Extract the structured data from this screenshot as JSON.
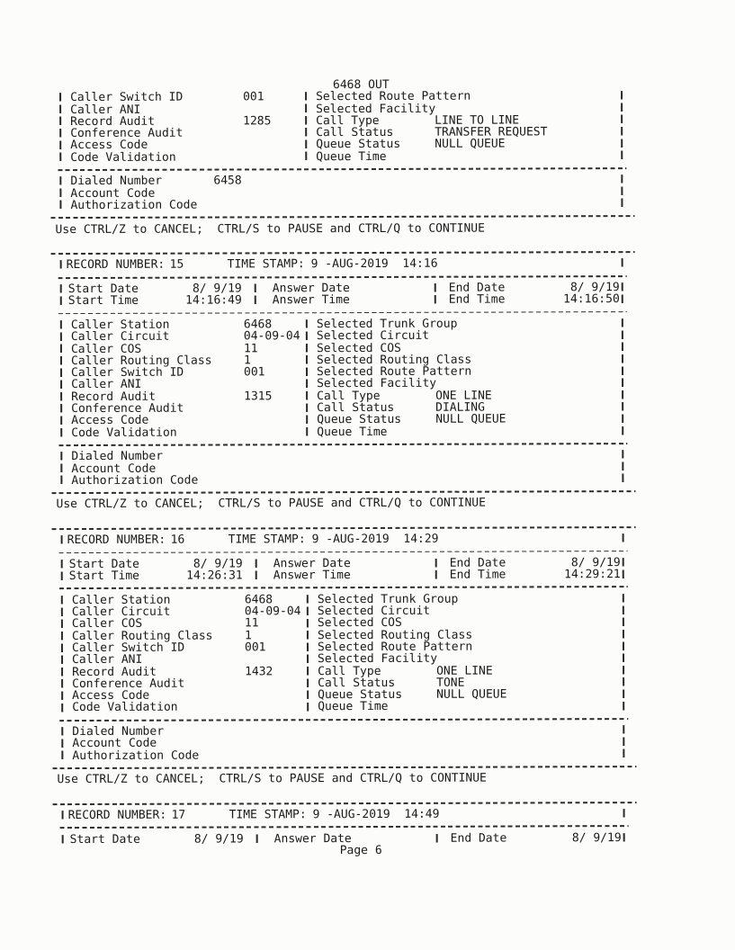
{
  "prompt_line": "Use CTRL/Z to CANCEL;  CTRL/S to PAUSE and CTRL/Q to CONTINUE",
  "footer": {
    "page_label": "Page 6"
  },
  "top_partial_record": {
    "carryover_value": "6468 OUT",
    "detail_rows": [
      {
        "l": "Caller Switch ID",
        "lv": "001",
        "r": "Selected Route Pattern",
        "rv": ""
      },
      {
        "l": "Caller ANI",
        "lv": "",
        "r": "Selected Facility",
        "rv": ""
      },
      {
        "l": "Record Audit",
        "lv": "1285",
        "r": "Call Type",
        "rv": "LINE TO LINE"
      },
      {
        "l": "Conference Audit",
        "lv": "",
        "r": "Call Status",
        "rv": "TRANSFER REQUEST"
      },
      {
        "l": "Access Code",
        "lv": "",
        "r": "Queue Status",
        "rv": "NULL QUEUE"
      },
      {
        "l": "Code Validation",
        "lv": "",
        "r": "Queue Time",
        "rv": ""
      }
    ],
    "dialed_rows": [
      {
        "l": "Dialed Number",
        "lv": "6458"
      },
      {
        "l": "Account Code",
        "lv": ""
      },
      {
        "l": "Authorization Code",
        "lv": ""
      }
    ]
  },
  "records": [
    {
      "header": {
        "label": "RECORD NUMBER:",
        "number": "15",
        "ts_label": "TIME STAMP:",
        "ts_value": "9 -AUG-2019  14:16"
      },
      "start_rows": [
        {
          "sl": "Start Date",
          "sv": "8/ 9/19",
          "al": "Answer Date",
          "av": "",
          "el": "End Date",
          "ev": "8/ 9/19"
        },
        {
          "sl": "Start Time",
          "sv": "14:16:49",
          "al": "Answer Time",
          "av": "",
          "el": "End Time",
          "ev": "14:16:50"
        }
      ],
      "detail_rows": [
        {
          "l": "Caller Station",
          "lv": "6468",
          "r": "Selected Trunk Group",
          "rv": ""
        },
        {
          "l": "Caller Circuit",
          "lv": "04-09-04",
          "r": "Selected Circuit",
          "rv": ""
        },
        {
          "l": "Caller COS",
          "lv": "11",
          "r": "Selected COS",
          "rv": ""
        },
        {
          "l": "Caller Routing Class",
          "lv": "1",
          "r": "Selected Routing Class",
          "rv": ""
        },
        {
          "l": "Caller Switch ID",
          "lv": "001",
          "r": "Selected Route Pattern",
          "rv": ""
        },
        {
          "l": "Caller ANI",
          "lv": "",
          "r": "Selected Facility",
          "rv": ""
        },
        {
          "l": "Record Audit",
          "lv": "1315",
          "r": "Call Type",
          "rv": "ONE LINE"
        },
        {
          "l": "Conference Audit",
          "lv": "",
          "r": "Call Status",
          "rv": "DIALING"
        },
        {
          "l": "Access Code",
          "lv": "",
          "r": "Queue Status",
          "rv": "NULL QUEUE"
        },
        {
          "l": "Code Validation",
          "lv": "",
          "r": "Queue Time",
          "rv": ""
        }
      ],
      "dialed_rows": [
        {
          "l": "Dialed Number",
          "lv": ""
        },
        {
          "l": "Account Code",
          "lv": ""
        },
        {
          "l": "Authorization Code",
          "lv": ""
        }
      ]
    },
    {
      "header": {
        "label": "RECORD NUMBER:",
        "number": "16",
        "ts_label": "TIME STAMP:",
        "ts_value": "9 -AUG-2019  14:29"
      },
      "start_rows": [
        {
          "sl": "Start Date",
          "sv": "8/ 9/19",
          "al": "Answer Date",
          "av": "",
          "el": "End Date",
          "ev": "8/ 9/19"
        },
        {
          "sl": "Start Time",
          "sv": "14:26:31",
          "al": "Answer Time",
          "av": "",
          "el": "End Time",
          "ev": "14:29:21"
        }
      ],
      "detail_rows": [
        {
          "l": "Caller Station",
          "lv": "6468",
          "r": "Selected Trunk Group",
          "rv": ""
        },
        {
          "l": "Caller Circuit",
          "lv": "04-09-04",
          "r": "Selected Circuit",
          "rv": ""
        },
        {
          "l": "Caller COS",
          "lv": "11",
          "r": "Selected COS",
          "rv": ""
        },
        {
          "l": "Caller Routing Class",
          "lv": "1",
          "r": "Selected Routing Class",
          "rv": ""
        },
        {
          "l": "Caller Switch ID",
          "lv": "001",
          "r": "Selected Route Pattern",
          "rv": ""
        },
        {
          "l": "Caller ANI",
          "lv": "",
          "r": "Selected Facility",
          "rv": ""
        },
        {
          "l": "Record Audit",
          "lv": "1432",
          "r": "Call Type",
          "rv": "ONE LINE"
        },
        {
          "l": "Conference Audit",
          "lv": "",
          "r": "Call Status",
          "rv": "TONE"
        },
        {
          "l": "Access Code",
          "lv": "",
          "r": "Queue Status",
          "rv": "NULL QUEUE"
        },
        {
          "l": "Code Validation",
          "lv": "",
          "r": "Queue Time",
          "rv": ""
        }
      ],
      "dialed_rows": [
        {
          "l": "Dialed Number",
          "lv": ""
        },
        {
          "l": "Account Code",
          "lv": ""
        },
        {
          "l": "Authorization Code",
          "lv": ""
        }
      ]
    }
  ],
  "bottom_partial_record": {
    "header": {
      "label": "RECORD NUMBER:",
      "number": "17",
      "ts_label": "TIME STAMP:",
      "ts_value": "9 -AUG-2019  14:49"
    },
    "start_rows": [
      {
        "sl": "Start Date",
        "sv": "8/ 9/19",
        "al": "Answer Date",
        "av": "",
        "el": "End Date",
        "ev": "8/ 9/19"
      }
    ]
  }
}
